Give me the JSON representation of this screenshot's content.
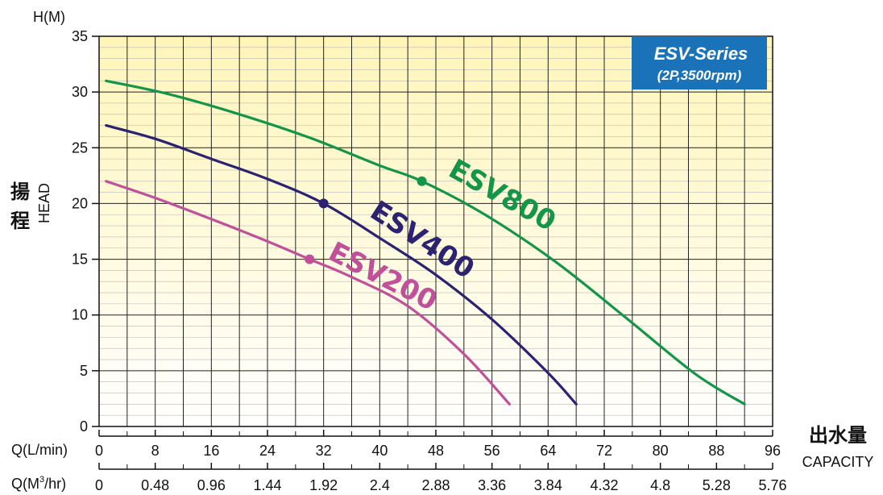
{
  "chart_data": {
    "type": "line",
    "badge": {
      "title": "ESV-Series",
      "subtitle": "(2P,3500rpm)",
      "color": "#1a73b8"
    },
    "y_axis": {
      "unit_label": "H(M)",
      "label_cjk_1": "揚",
      "label_cjk_2": "程",
      "label_en": "HEAD",
      "ylim": [
        0,
        35
      ],
      "ticks": [
        "0",
        "5",
        "10",
        "15",
        "20",
        "25",
        "30",
        "35"
      ]
    },
    "x_axis": {
      "xlim": [
        0,
        96
      ],
      "label_cjk": "出水量",
      "label_en": "CAPACITY",
      "primary": {
        "label": "Q(L/min)",
        "ticks": [
          "0",
          "8",
          "16",
          "24",
          "32",
          "40",
          "48",
          "56",
          "64",
          "72",
          "80",
          "88",
          "96"
        ]
      },
      "secondary": {
        "label_prefix": "Q(M",
        "label_sup": "3",
        "label_suffix": "/hr)",
        "ticks": [
          "0",
          "0.48",
          "0.96",
          "1.44",
          "1.92",
          "2.4",
          "2.88",
          "3.36",
          "3.84",
          "4.32",
          "4.8",
          "5.28",
          "5.76"
        ]
      }
    },
    "grid": true,
    "background": {
      "top": "#fff5b8",
      "bottom": "#ffffff"
    },
    "series": [
      {
        "name": "ESV800",
        "color": "#13964a",
        "x": [
          1,
          10,
          20,
          30,
          40,
          46,
          55,
          65,
          75,
          85,
          92
        ],
        "y": [
          31,
          29.8,
          28,
          25.9,
          23.4,
          22,
          19,
          14.8,
          9.8,
          4.7,
          2
        ],
        "marker": {
          "x": 46,
          "y": 22
        }
      },
      {
        "name": "ESV400",
        "color": "#2b2372",
        "x": [
          1,
          8,
          16,
          24,
          32,
          40,
          48,
          56,
          64,
          68
        ],
        "y": [
          27,
          25.8,
          24,
          22.2,
          20,
          16.9,
          13.6,
          9.6,
          4.8,
          2
        ],
        "marker": {
          "x": 32,
          "y": 20
        }
      },
      {
        "name": "ESV200",
        "color": "#c0509a",
        "x": [
          1,
          8,
          16,
          24,
          30,
          36,
          44,
          52,
          58.5
        ],
        "y": [
          22,
          20.5,
          18.6,
          16.6,
          15,
          13.4,
          10.8,
          6.5,
          2
        ],
        "marker": {
          "x": 30,
          "y": 15
        }
      }
    ]
  }
}
